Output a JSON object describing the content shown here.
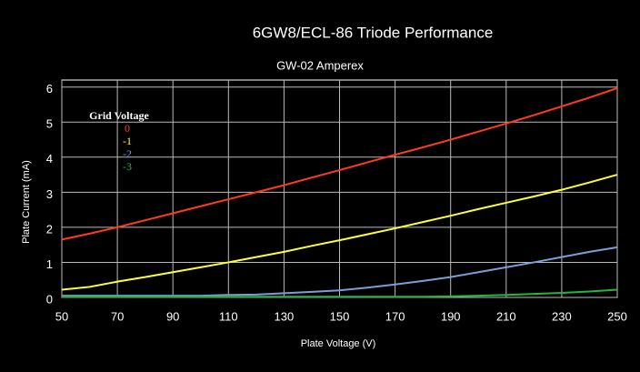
{
  "chart_data": {
    "type": "line",
    "title": "6GW8/ECL-86 Triode Performance",
    "subtitle": "GW-02 Amperex",
    "x_label": "Plate Voltage (V)",
    "y_label": "Plate Current (mA)",
    "legend_title": "Grid Voltage",
    "x": [
      50,
      60,
      70,
      80,
      90,
      100,
      110,
      120,
      130,
      140,
      150,
      160,
      170,
      180,
      190,
      200,
      210,
      220,
      230,
      240,
      250
    ],
    "series": [
      {
        "name": "0",
        "color": "#ff3b1f",
        "values": [
          1.65,
          1.82,
          2.0,
          2.2,
          2.4,
          2.6,
          2.8,
          3.0,
          3.2,
          3.42,
          3.63,
          3.85,
          4.07,
          4.28,
          4.5,
          4.73,
          4.96,
          5.2,
          5.45,
          5.7,
          5.97
        ]
      },
      {
        "name": "-1",
        "color": "#ffff33",
        "values": [
          0.22,
          0.3,
          0.45,
          0.58,
          0.72,
          0.86,
          1.0,
          1.15,
          1.3,
          1.47,
          1.63,
          1.8,
          1.97,
          2.15,
          2.33,
          2.52,
          2.7,
          2.88,
          3.07,
          3.28,
          3.5
        ]
      },
      {
        "name": "-2",
        "color": "#7a9fd8",
        "values": [
          0.05,
          0.05,
          0.05,
          0.05,
          0.05,
          0.05,
          0.07,
          0.08,
          0.12,
          0.16,
          0.2,
          0.28,
          0.37,
          0.47,
          0.58,
          0.72,
          0.86,
          1.0,
          1.15,
          1.3,
          1.43
        ]
      },
      {
        "name": "-3",
        "color": "#22b83a",
        "values": [
          0.02,
          0.02,
          0.02,
          0.02,
          0.02,
          0.02,
          0.02,
          0.02,
          0.02,
          0.02,
          0.02,
          0.02,
          0.02,
          0.02,
          0.03,
          0.05,
          0.07,
          0.1,
          0.13,
          0.17,
          0.22
        ]
      }
    ],
    "xlim": [
      50,
      250
    ],
    "xticks": [
      50,
      70,
      90,
      110,
      130,
      150,
      170,
      190,
      210,
      230,
      250
    ],
    "ylim": [
      0,
      6.2
    ],
    "yticks": [
      0,
      1,
      2,
      3,
      4,
      5,
      6
    ],
    "grid": true
  }
}
